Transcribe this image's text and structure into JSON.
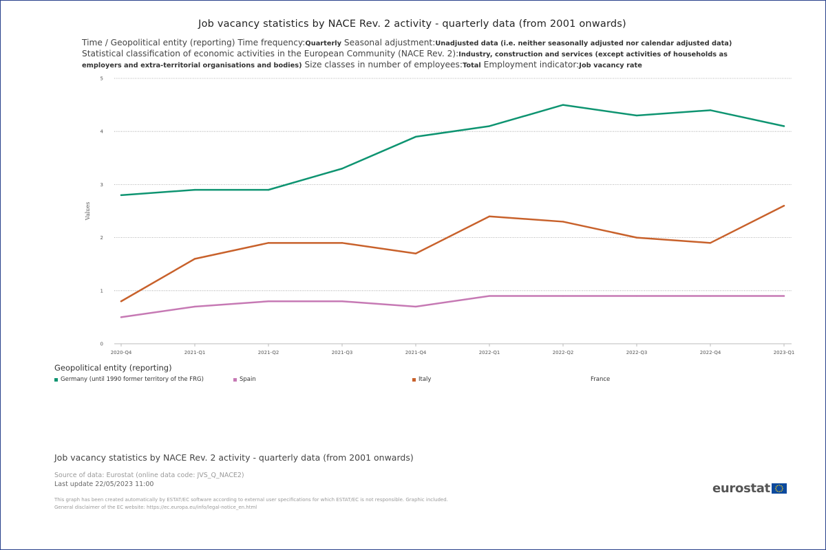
{
  "title": "Job vacancy statistics by NACE Rev. 2 activity - quarterly data (from 2001 onwards)",
  "subtitle": {
    "parts": [
      {
        "label": "Time / Geopolitical entity (reporting)  Time frequency:",
        "value": "Quarterly"
      },
      {
        "label": "  Seasonal adjustment:",
        "value": "Unadjusted data (i.e. neither seasonally adjusted nor calendar adjusted data)"
      },
      {
        "label": "  Statistical classification of economic activities in the European Community (NACE Rev. 2):",
        "value": "Industry, construction and services (except activities of households as employers and extra-territorial organisations and bodies)"
      },
      {
        "label": "  Size classes in number of employees:",
        "value": "Total"
      },
      {
        "label": "  Employment indicator:",
        "value": "Job vacancy rate"
      }
    ]
  },
  "legend": {
    "title": "Geopolitical entity (reporting)",
    "items": [
      {
        "label": "Germany (until 1990 former territory of the FRG)",
        "color": "#0e9471"
      },
      {
        "label": "Spain",
        "color": "#c679b4"
      },
      {
        "label": "Italy",
        "color": "#c8612b"
      },
      {
        "label": "France",
        "color": ""
      }
    ]
  },
  "chart_data": {
    "type": "line",
    "title": "Job vacancy statistics by NACE Rev. 2 activity - quarterly data (from 2001 onwards)",
    "ylabel": "Values",
    "xlabel": "",
    "ylim": [
      0,
      5
    ],
    "yticks": [
      "0",
      "1",
      "2",
      "3",
      "4",
      "5"
    ],
    "grid": true,
    "legend_position": "bottom",
    "categories": [
      "2020-Q4",
      "2021-Q1",
      "2021-Q2",
      "2021-Q3",
      "2021-Q4",
      "2022-Q1",
      "2022-Q2",
      "2022-Q3",
      "2022-Q4",
      "2023-Q1"
    ],
    "series": [
      {
        "name": "Germany (until 1990 former territory of the FRG)",
        "color": "#0e9471",
        "values": [
          2.8,
          2.9,
          2.9,
          3.3,
          3.9,
          4.1,
          4.5,
          4.3,
          4.4,
          4.1
        ]
      },
      {
        "name": "Italy",
        "color": "#c8612b",
        "values": [
          0.8,
          1.6,
          1.9,
          1.9,
          1.7,
          2.4,
          2.3,
          2.0,
          1.9,
          2.6
        ]
      },
      {
        "name": "Spain",
        "color": "#c679b4",
        "values": [
          0.5,
          0.7,
          0.8,
          0.8,
          0.7,
          0.9,
          0.9,
          0.9,
          0.9,
          0.9
        ]
      }
    ]
  },
  "footer": {
    "title": "Job vacancy statistics by NACE Rev. 2 activity - quarterly data (from 2001 onwards)",
    "source": "Source of data: Eurostat (online data code: JVS_Q_NACE2)",
    "update": "Last update 22/05/2023 11:00",
    "disclaimer_1": "This graph has been created automatically by ESTAT/EC software according to external user specifications for which ESTAT/EC is not responsible. Graphic included.",
    "disclaimer_2": "General disclaimer of the EC website: https://ec.europa.eu/info/legal-notice_en.html",
    "logo_text": "eurostat"
  }
}
